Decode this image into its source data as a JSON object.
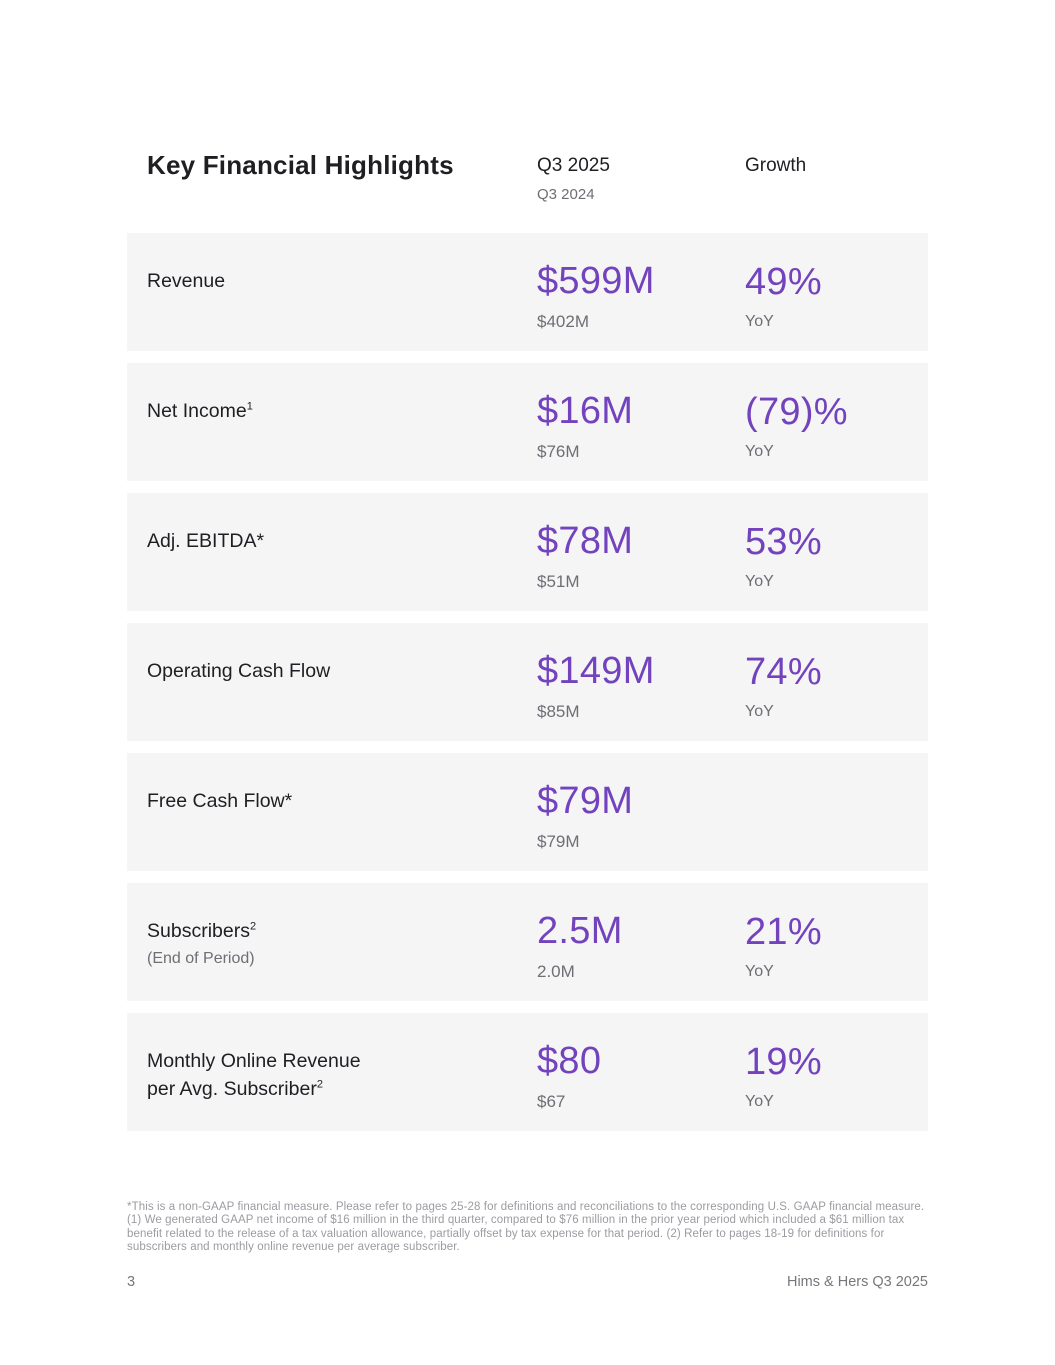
{
  "colors": {
    "accent_purple": "#7243bd",
    "row_bg": "#f5f5f6",
    "text_dark": "#1f1f23",
    "text_gray": "#6e6e74",
    "footnote_gray": "#9c9ba1",
    "footer_gray": "#77767c"
  },
  "header": {
    "title": "Key Financial Highlights",
    "col_current": "Q3 2025",
    "col_prior": "Q3 2024",
    "col_growth": "Growth"
  },
  "rows": [
    {
      "label": "Revenue",
      "current": "$599M",
      "prior": "$402M",
      "growth": "49%",
      "growth_period": "YoY"
    },
    {
      "label": "Net Income",
      "sup": "1",
      "current": "$16M",
      "prior": "$76M",
      "growth": "(79)%",
      "growth_period": "YoY"
    },
    {
      "label": "Adj. EBITDA*",
      "current": "$78M",
      "prior": "$51M",
      "growth": "53%",
      "growth_period": "YoY"
    },
    {
      "label": "Operating Cash Flow",
      "current": "$149M",
      "prior": "$85M",
      "growth": "74%",
      "growth_period": "YoY"
    },
    {
      "label": "Free Cash Flow*",
      "current": "$79M",
      "prior": "$79M"
    },
    {
      "label": "Subscribers",
      "sup": "2",
      "sublabel": "(End of Period)",
      "current": "2.5M",
      "prior": "2.0M",
      "growth": "21%",
      "growth_period": "YoY"
    },
    {
      "label": "Monthly Online Revenue per Avg. Subscriber",
      "sup": "2",
      "current": "$80",
      "prior": "$67",
      "growth": "19%",
      "growth_period": "YoY"
    }
  ],
  "footnote": "*This is a non-GAAP financial measure. Please refer to pages 25-28 for definitions and reconciliations to the corresponding U.S. GAAP financial measure. (1) We generated GAAP net income of $16 million in the third quarter, compared to $76 million in the prior year period which included a $61 million tax benefit related to the release of a tax valuation allowance, partially offset by tax expense for that period. (2) Refer to pages 18-19 for definitions for subscribers and monthly online revenue per average subscriber.",
  "footer": {
    "page_number": "3",
    "brand": "Hims & Hers Q3 2025"
  }
}
